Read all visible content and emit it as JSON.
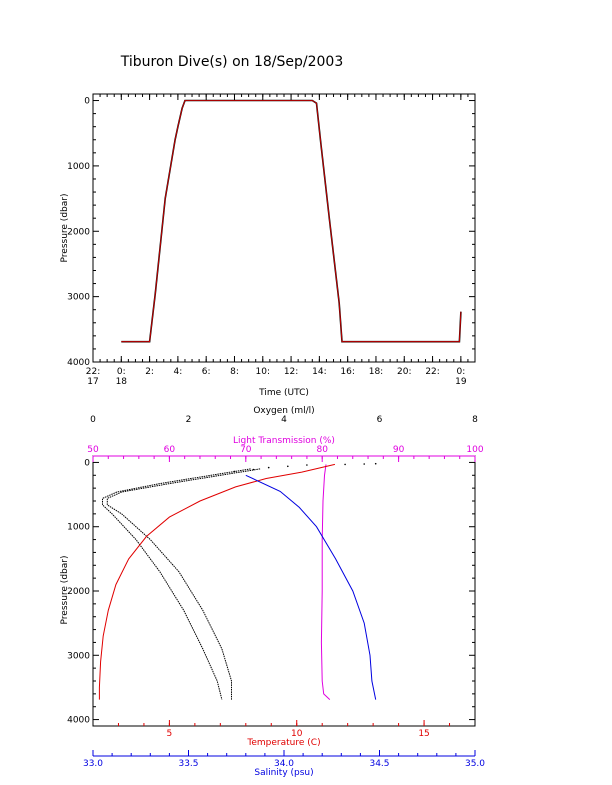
{
  "page": {
    "title": "Tiburon Dive(s) on 18/Sep/2003"
  },
  "colors": {
    "black": "#000000",
    "red": "#e00000",
    "magenta": "#e000e0",
    "blue": "#0000e0"
  },
  "chart_data": [
    {
      "type": "line",
      "xlabel": "Time (UTC)",
      "ylabel": "Pressure (dbar)",
      "xlim": [
        -2.0,
        25.0
      ],
      "ylim": [
        4000,
        -100
      ],
      "x_ticks": [
        {
          "v": -2,
          "l1": "22:",
          "l2": "17"
        },
        {
          "v": 0,
          "l1": "0:",
          "l2": "18"
        },
        {
          "v": 2,
          "l1": "2:",
          "l2": ""
        },
        {
          "v": 4,
          "l1": "4:",
          "l2": ""
        },
        {
          "v": 6,
          "l1": "6:",
          "l2": ""
        },
        {
          "v": 8,
          "l1": "8:",
          "l2": ""
        },
        {
          "v": 10,
          "l1": "10:",
          "l2": ""
        },
        {
          "v": 12,
          "l1": "12:",
          "l2": ""
        },
        {
          "v": 14,
          "l1": "14:",
          "l2": ""
        },
        {
          "v": 16,
          "l1": "16:",
          "l2": ""
        },
        {
          "v": 18,
          "l1": "18:",
          "l2": ""
        },
        {
          "v": 20,
          "l1": "20:",
          "l2": ""
        },
        {
          "v": 22,
          "l1": "22:",
          "l2": ""
        },
        {
          "v": 24,
          "l1": "0:",
          "l2": "19"
        }
      ],
      "y_ticks": [
        0,
        1000,
        2000,
        3000,
        4000
      ],
      "series": [
        {
          "color": "#000000",
          "x": [
            0.0,
            2.0,
            2.4,
            3.1,
            3.8,
            4.0,
            4.3,
            4.5,
            13.5,
            13.8,
            14.1,
            14.7,
            15.4,
            15.6,
            23.9,
            24.0
          ],
          "y": [
            3690,
            3690,
            2950,
            1500,
            600,
            400,
            120,
            0,
            0,
            40,
            650,
            1800,
            3100,
            3690,
            3690,
            3230
          ]
        },
        {
          "color": "#e00000",
          "x": [
            0.0,
            2.0,
            2.4,
            3.1,
            3.8,
            4.0,
            4.3,
            4.5,
            13.5,
            13.8,
            14.1,
            14.7,
            15.4,
            15.6,
            23.9,
            24.0
          ],
          "y": [
            3690,
            3690,
            2950,
            1500,
            600,
            400,
            120,
            0,
            0,
            40,
            650,
            1800,
            3100,
            3690,
            3690,
            3230
          ]
        }
      ]
    },
    {
      "type": "line",
      "ylabel": "Pressure (dbar)",
      "ylim": [
        4100,
        -100
      ],
      "y_ticks": [
        0,
        1000,
        2000,
        3000,
        4000
      ],
      "axes": {
        "oxygen": {
          "label": "Oxygen (ml/l)",
          "lim": [
            0,
            8
          ],
          "ticks": [
            0,
            2,
            4,
            6,
            8
          ],
          "color": "#000000"
        },
        "transmission": {
          "label": "Light Transmission (%)",
          "lim": [
            50,
            100
          ],
          "ticks": [
            50,
            60,
            70,
            80,
            90,
            100
          ],
          "color": "#e000e0"
        },
        "temperature": {
          "label": "Temperature (C)",
          "lim": [
            2.0,
            17.0
          ],
          "ticks": [
            5,
            10,
            15
          ],
          "color": "#e00000"
        },
        "salinity": {
          "label": "Salinity (psu)",
          "lim": [
            33.0,
            35.0
          ],
          "ticks": [
            "33.0",
            "33.5",
            "34.0",
            "34.5",
            "35.0"
          ],
          "color": "#0000e0"
        }
      },
      "series": [
        {
          "axis": "oxygen",
          "color": "#000000",
          "x": [
            3.3,
            2.3,
            1.4,
            0.5,
            0.2,
            0.2,
            0.4,
            0.9,
            1.4,
            1.9,
            2.3,
            2.6,
            2.7
          ],
          "y": [
            100,
            220,
            330,
            460,
            560,
            660,
            800,
            1200,
            1700,
            2300,
            2900,
            3400,
            3690
          ]
        },
        {
          "axis": "oxygen",
          "color": "#000000",
          "x": [
            3.5,
            2.5,
            1.6,
            0.6,
            0.3,
            0.3,
            0.6,
            1.2,
            1.8,
            2.3,
            2.7,
            2.9,
            2.9
          ],
          "y": [
            100,
            220,
            330,
            460,
            560,
            660,
            800,
            1200,
            1700,
            2300,
            2900,
            3400,
            3690
          ]
        },
        {
          "axis": "transmission",
          "color": "#e000e0",
          "x": [
            80.5,
            80.3,
            80.1,
            80.0,
            80.0,
            79.9,
            80.0,
            80.2,
            81.0
          ],
          "y": [
            30,
            200,
            600,
            1200,
            2000,
            2800,
            3400,
            3600,
            3690
          ]
        },
        {
          "axis": "temperature",
          "color": "#e00000",
          "x": [
            11.5,
            10.2,
            8.8,
            7.6,
            6.2,
            5.0,
            4.1,
            3.4,
            2.9,
            2.6,
            2.4,
            2.3,
            2.25,
            2.25
          ],
          "y": [
            30,
            150,
            250,
            380,
            600,
            850,
            1150,
            1500,
            1900,
            2300,
            2700,
            3100,
            3500,
            3690
          ]
        },
        {
          "axis": "salinity",
          "color": "#0000e0",
          "x": [
            33.8,
            33.98,
            34.08,
            34.17,
            34.27,
            34.36,
            34.42,
            34.45,
            34.46,
            34.48
          ],
          "y": [
            200,
            450,
            700,
            1000,
            1500,
            2000,
            2500,
            3000,
            3400,
            3690
          ]
        }
      ],
      "scatter": [
        {
          "axis": "transmission",
          "color": "#000000",
          "x": [
            68.5,
            71.0,
            73.0,
            75.5,
            78.0,
            83.0,
            85.5,
            87.0
          ],
          "y": [
            140,
            110,
            80,
            60,
            40,
            30,
            25,
            20
          ]
        }
      ]
    }
  ]
}
